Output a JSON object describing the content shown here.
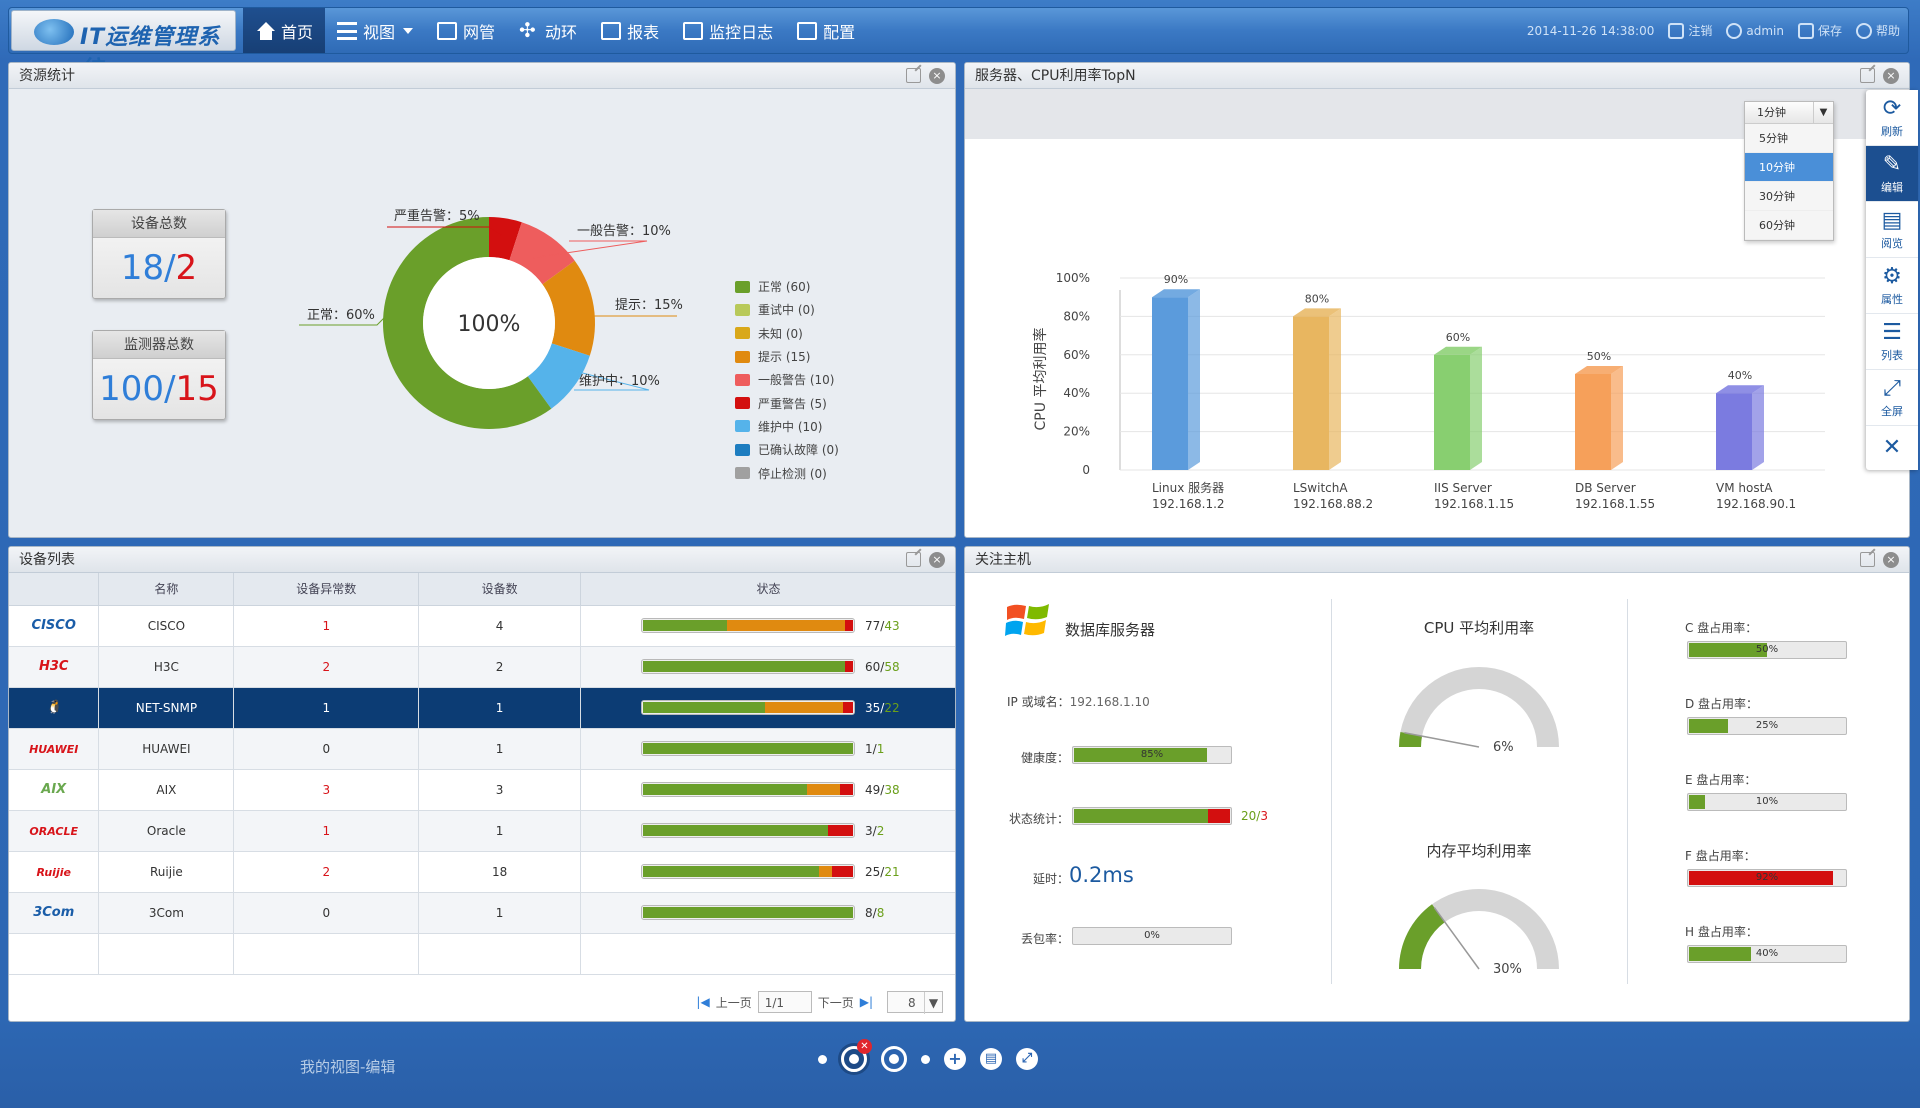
{
  "app": {
    "title": "IT运维管理系统"
  },
  "nav": {
    "items": [
      {
        "label": "首页",
        "icon": "home-icon",
        "active": true
      },
      {
        "label": "视图",
        "icon": "view-list-icon",
        "dropdown": true
      },
      {
        "label": "网管",
        "icon": "network-monitor-icon"
      },
      {
        "label": "动环",
        "icon": "environment-icon"
      },
      {
        "label": "报表",
        "icon": "report-chart-icon"
      },
      {
        "label": "监控日志",
        "icon": "monitor-log-icon"
      },
      {
        "label": "配置",
        "icon": "config-icon"
      }
    ]
  },
  "top_right": {
    "datetime": "2014-11-26 14:38:00",
    "logout": "注销",
    "user": "admin",
    "save": "保存",
    "help": "帮助"
  },
  "resource_panel": {
    "title": "资源统计",
    "device_total_label": "设备总数",
    "device_total": "18",
    "device_total_bad": "2",
    "monitor_total_label": "监测器总数",
    "monitor_total": "100",
    "monitor_total_bad": "15",
    "center_label": "100%",
    "legend": [
      {
        "label": "正常 (60)",
        "color": "#6a9f2a"
      },
      {
        "label": "重试中 (0)",
        "color": "#b8c95a"
      },
      {
        "label": "未知 (0)",
        "color": "#d9a81a"
      },
      {
        "label": "提示 (15)",
        "color": "#e08a10"
      },
      {
        "label": "一般警告 (10)",
        "color": "#ee5d5d"
      },
      {
        "label": "严重警告 (5)",
        "color": "#d30f0f"
      },
      {
        "label": "维护中 (10)",
        "color": "#55b3ea"
      },
      {
        "label": "已确认故障 (0)",
        "color": "#1d7dc0"
      },
      {
        "label": "停止检测 (0)",
        "color": "#a0a0a0"
      }
    ],
    "donut_labels": {
      "severe": "严重告警：5%",
      "general": "一般告警：10%",
      "hint": "提示：15%",
      "maint": "维护中：10%",
      "normal": "正常：60%"
    }
  },
  "chart_panel": {
    "title": "服务器、CPU利用率TopN",
    "interval_selected": "1分钟",
    "interval_options": [
      "5分钟",
      "10分钟",
      "30分钟",
      "60分钟"
    ],
    "interval_active": "10分钟"
  },
  "chart_data": {
    "type": "bar",
    "ylabel": "CPU 平均利用率",
    "ylim": [
      0,
      100
    ],
    "yticks": [
      "0",
      "20%",
      "40%",
      "60%",
      "80%",
      "100%"
    ],
    "categories": [
      {
        "name": "Linux 服务器",
        "ip": "192.168.1.2"
      },
      {
        "name": "LSwitchA",
        "ip": "192.168.88.2"
      },
      {
        "name": "IIS Server",
        "ip": "192.168.1.15"
      },
      {
        "name": "DB Server",
        "ip": "192.168.1.55"
      },
      {
        "name": "VM hostA",
        "ip": "192.168.90.1"
      }
    ],
    "values": [
      90,
      80,
      60,
      50,
      40
    ],
    "value_labels": [
      "90%",
      "80%",
      "60%",
      "50%",
      "40%"
    ],
    "colors": [
      "#5b9bdc",
      "#e8b660",
      "#88cf70",
      "#f6a05a",
      "#7b7be0"
    ]
  },
  "sidebar": {
    "items": [
      {
        "label": "刷新",
        "icon": "refresh-icon",
        "glyph": "⟳"
      },
      {
        "label": "编辑",
        "icon": "edit-icon",
        "glyph": "✎",
        "active": true
      },
      {
        "label": "阅览",
        "icon": "document-icon",
        "glyph": "▤"
      },
      {
        "label": "属性",
        "icon": "gear-icon",
        "glyph": "⚙"
      },
      {
        "label": "列表",
        "icon": "list-icon",
        "glyph": "☰"
      },
      {
        "label": "全屏",
        "icon": "fullscreen-icon",
        "glyph": "⤢"
      }
    ],
    "close_glyph": "✕"
  },
  "device_panel": {
    "title": "设备列表",
    "columns": [
      "",
      "名称",
      "设备异常数",
      "设备数",
      "状态"
    ],
    "rows": [
      {
        "logo": "CISCO",
        "logo_color": "#1a5da8",
        "name": "CISCO",
        "abnormal": "1",
        "count": "4",
        "status": "77/",
        "status_ok": "43",
        "bar": [
          0.4,
          0.56,
          0.04
        ],
        "abn_red": true
      },
      {
        "logo": "H3C",
        "logo_color": "#d8141a",
        "name": "H3C",
        "abnormal": "2",
        "count": "2",
        "status": "60/",
        "status_ok": "58",
        "bar": [
          0.96,
          0,
          0.04
        ],
        "abn_red": true
      },
      {
        "logo": "🐧",
        "logo_color": "#000",
        "name": "NET-SNMP",
        "abnormal": "1",
        "count": "1",
        "status": "35/",
        "status_ok": "22",
        "bar": [
          0.58,
          0.37,
          0.05
        ],
        "abn_red": false,
        "selected": true
      },
      {
        "logo": "HUAWEI",
        "logo_color": "#d8141a",
        "name": "HUAWEI",
        "abnormal": "0",
        "count": "1",
        "status": "1/",
        "status_ok": "1",
        "bar": [
          1,
          0,
          0
        ],
        "abn_red": false
      },
      {
        "logo": "AIX",
        "logo_color": "#6aa84f",
        "name": "AIX",
        "abnormal": "3",
        "count": "3",
        "status": "49/",
        "status_ok": "38",
        "bar": [
          0.78,
          0.16,
          0.06
        ],
        "abn_red": true
      },
      {
        "logo": "ORACLE",
        "logo_color": "#d8141a",
        "name": "Oracle",
        "abnormal": "1",
        "count": "1",
        "status": "3/",
        "status_ok": "2",
        "bar": [
          0.88,
          0,
          0.12
        ],
        "abn_red": true
      },
      {
        "logo": "Ruijie",
        "logo_color": "#d8141a",
        "name": "Ruijie",
        "abnormal": "2",
        "count": "18",
        "status": "25/",
        "status_ok": "21",
        "bar": [
          0.84,
          0.06,
          0.1
        ],
        "abn_red": true
      },
      {
        "logo": "3Com",
        "logo_color": "#1a5da8",
        "name": "3Com",
        "abnormal": "0",
        "count": "1",
        "status": "8/",
        "status_ok": "8",
        "bar": [
          1,
          0,
          0
        ],
        "abn_red": false
      }
    ],
    "pager": {
      "prev": "上一页",
      "page": "1/1",
      "next": "下一页",
      "size": "8"
    }
  },
  "host_panel": {
    "title": "关注主机",
    "host_name": "数据库服务器",
    "ip_label": "IP 或域名：",
    "ip": "192.168.1.10",
    "health_label": "健康度：",
    "health": "85%",
    "health_value": 0.85,
    "status_label": "状态统计：",
    "status_total": "20/",
    "status_ok": "3",
    "status_value": 0.86,
    "latency_label": "延时：",
    "latency": "0.2ms",
    "loss_label": "丢包率：",
    "loss": "0%",
    "cpu_title": "CPU 平均利用率",
    "cpu_value": "6%",
    "cpu_pct": 6,
    "mem_title": "内存平均利用率",
    "mem_value": "30%",
    "mem_pct": 30,
    "disks": [
      {
        "label": "C 盘占用率：",
        "value": "50%",
        "pct": 0.5,
        "color": "#6a9f2a"
      },
      {
        "label": "D 盘占用率：",
        "value": "25%",
        "pct": 0.25,
        "color": "#6a9f2a"
      },
      {
        "label": "E 盘占用率：",
        "value": "10%",
        "pct": 0.1,
        "color": "#6a9f2a"
      },
      {
        "label": "F 盘占用率：",
        "value": "92%",
        "pct": 0.92,
        "color": "#d30f0f"
      },
      {
        "label": "H 盘占用率：",
        "value": "40%",
        "pct": 0.4,
        "color": "#6a9f2a"
      }
    ]
  },
  "bottom": {
    "view_label": "我的视图-编辑"
  }
}
